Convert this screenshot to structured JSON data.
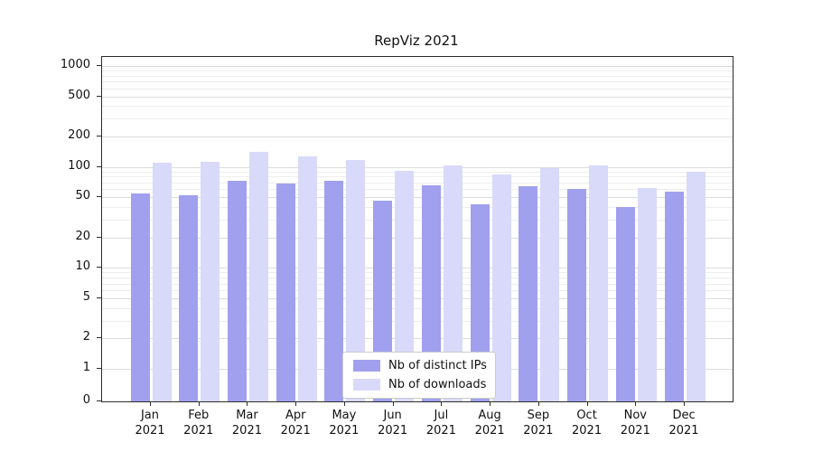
{
  "chart_data": {
    "type": "bar",
    "title": "RepViz 2021",
    "yscale": "symlog",
    "grid": true,
    "legend_position": "lower center",
    "yticks": [
      0,
      1,
      2,
      5,
      10,
      20,
      50,
      100,
      200,
      500,
      1000
    ],
    "ylim": [
      0,
      1200
    ],
    "categories": [
      "Jan",
      "Feb",
      "Mar",
      "Apr",
      "May",
      "Jun",
      "Jul",
      "Aug",
      "Sep",
      "Oct",
      "Nov",
      "Dec"
    ],
    "year_label": "2021",
    "series": [
      {
        "name": "Nb of distinct IPs",
        "key": "distinct-ips",
        "color": "#a0a0ef",
        "values": [
          55,
          52,
          73,
          68,
          73,
          46,
          65,
          43,
          64,
          61,
          40,
          57
        ]
      },
      {
        "name": "Nb of downloads",
        "key": "downloads",
        "color": "#d9d9f9",
        "values": [
          110,
          113,
          140,
          127,
          118,
          91,
          103,
          84,
          98,
          104,
          62,
          89
        ]
      }
    ]
  }
}
